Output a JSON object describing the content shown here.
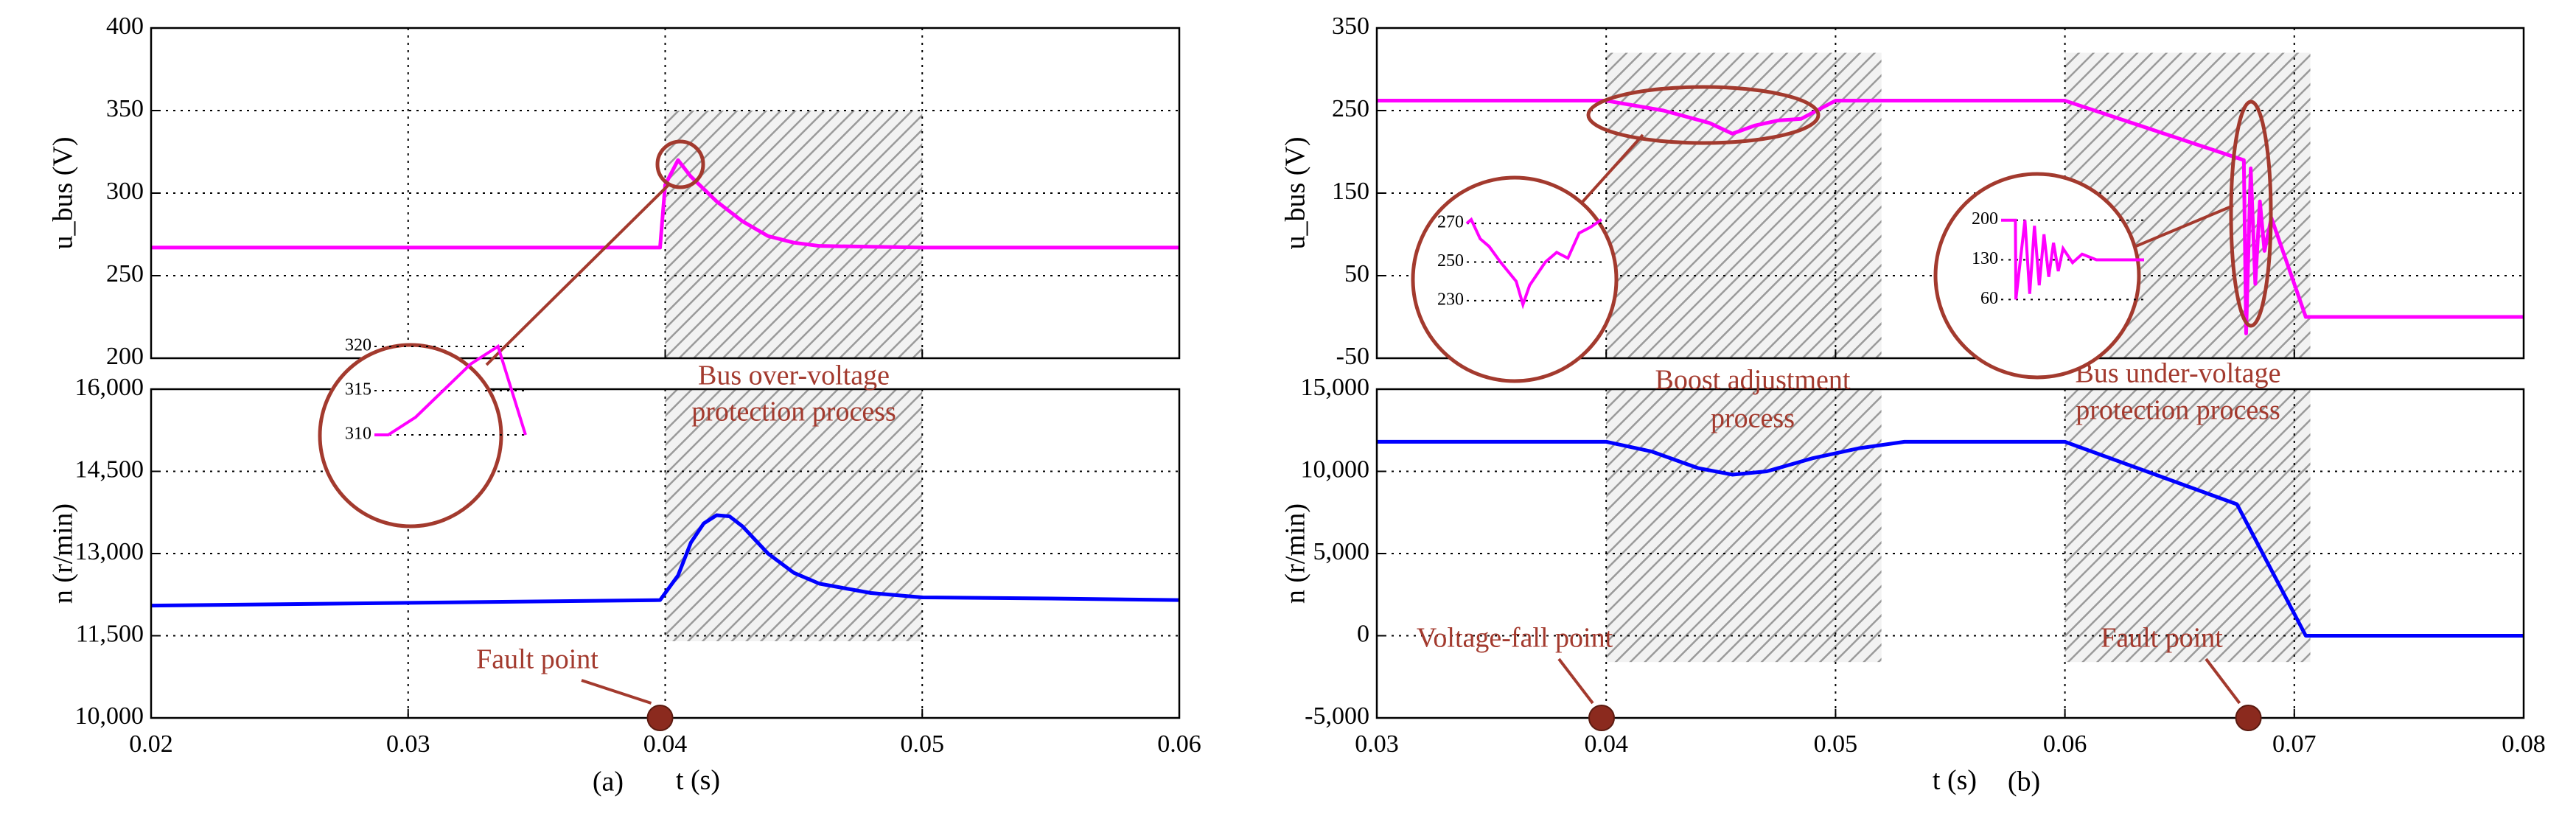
{
  "chart_data": [
    {
      "type": "line",
      "ylabel": "u_bus (V)",
      "xlim": [
        0.02,
        0.06
      ],
      "ylim": [
        200,
        400
      ],
      "yticks": [
        200,
        250,
        300,
        350,
        400
      ],
      "grid": true,
      "series": [
        {
          "color": "#ff00ff",
          "x": [
            0.02,
            0.0398,
            0.04,
            0.0405,
            0.041,
            0.042,
            0.043,
            0.044,
            0.045,
            0.046,
            0.05,
            0.06
          ],
          "values": [
            267,
            267,
            305,
            320,
            310,
            295,
            283,
            274,
            270,
            268,
            267,
            267
          ]
        }
      ],
      "shade": {
        "x": [
          0.04,
          0.05
        ],
        "y": [
          200,
          350
        ]
      },
      "inset": {
        "xlim": [
          0.0386,
          0.0408
        ],
        "ylim": [
          309,
          321
        ],
        "yticks": [
          310,
          315,
          320
        ],
        "x": [
          0.0386,
          0.0388,
          0.0392,
          0.0396,
          0.04,
          0.0404,
          0.0406,
          0.0408
        ],
        "values": [
          310,
          310,
          312,
          315,
          318,
          320,
          315,
          310
        ]
      }
    },
    {
      "type": "line",
      "ylabel": "n (r/min)",
      "xlabel": "t (s)",
      "caption": "(a)",
      "xlim": [
        0.02,
        0.06
      ],
      "xticks": [
        0.02,
        0.03,
        0.04,
        0.05,
        0.06
      ],
      "ylim": [
        10000,
        16000
      ],
      "yticks": [
        {
          "value": 10000,
          "label": "10,000"
        },
        {
          "value": 11500,
          "label": "11,500"
        },
        {
          "value": 13000,
          "label": "13,000"
        },
        {
          "value": 14500,
          "label": "14,500"
        },
        {
          "value": 16000,
          "label": "16,000"
        }
      ],
      "grid": true,
      "series": [
        {
          "color": "#0000ff",
          "x": [
            0.02,
            0.03,
            0.0398,
            0.0405,
            0.041,
            0.0415,
            0.042,
            0.0425,
            0.043,
            0.044,
            0.045,
            0.046,
            0.048,
            0.05,
            0.055,
            0.06
          ],
          "values": [
            12050,
            12100,
            12150,
            12600,
            13200,
            13550,
            13700,
            13680,
            13500,
            13000,
            12650,
            12450,
            12280,
            12200,
            12180,
            12150
          ]
        }
      ],
      "shade": {
        "x": [
          0.04,
          0.05
        ],
        "y": [
          11400,
          16000
        ]
      },
      "annotations": [
        "Bus over-voltage",
        "protection process"
      ],
      "markers": [
        {
          "label": "Fault point",
          "x": 0.0398
        }
      ]
    },
    {
      "type": "line",
      "ylabel": "u_bus (V)",
      "xlim": [
        0.03,
        0.08
      ],
      "ylim": [
        -50,
        350
      ],
      "yticks": [
        -50,
        50,
        150,
        250,
        350
      ],
      "grid": true,
      "series": [
        {
          "color": "#ff00ff",
          "x": [
            0.03,
            0.04,
            0.0425,
            0.0445,
            0.0455,
            0.0465,
            0.0475,
            0.0485,
            0.05,
            0.06,
            0.0678,
            0.0679,
            0.0681,
            0.0683,
            0.0685,
            0.0687,
            0.069,
            0.0695,
            0.0705,
            0.08
          ],
          "values": [
            262,
            262,
            250,
            235,
            222,
            232,
            238,
            240,
            262,
            262,
            190,
            -20,
            180,
            40,
            140,
            80,
            120,
            80,
            0,
            0
          ]
        }
      ],
      "shade": {
        "x": [
          0.04,
          0.052
        ],
        "y": [
          -50,
          320
        ]
      },
      "shade2": {
        "x": [
          0.06,
          0.0707
        ],
        "y": [
          -50,
          320
        ]
      },
      "insets": [
        {
          "xlim": [
            0.043,
            0.049
          ],
          "ylim": [
            225,
            275
          ],
          "yticks": [
            230,
            250,
            270
          ],
          "x": [
            0.043,
            0.0432,
            0.0436,
            0.044,
            0.0445,
            0.0452,
            0.0455,
            0.0458,
            0.0465,
            0.047,
            0.0475,
            0.048,
            0.0485,
            0.049
          ],
          "values": [
            270,
            272,
            262,
            258,
            250,
            240,
            228,
            238,
            250,
            255,
            252,
            265,
            268,
            272
          ]
        },
        {
          "xlim": [
            0.0675,
            0.0705
          ],
          "ylim": [
            50,
            210
          ],
          "yticks": [
            60,
            130,
            200
          ],
          "x": [
            0.0675,
            0.0678,
            0.06781,
            0.068,
            0.0681,
            0.0682,
            0.0683,
            0.0684,
            0.0685,
            0.0686,
            0.0687,
            0.0688,
            0.069,
            0.0692,
            0.0695,
            0.0705
          ],
          "values": [
            200,
            200,
            60,
            200,
            70,
            190,
            85,
            175,
            100,
            160,
            110,
            150,
            125,
            140,
            130,
            130
          ]
        }
      ]
    },
    {
      "type": "line",
      "ylabel": "n (r/min)",
      "xlabel": "t (s)",
      "caption": "(b)",
      "xlim": [
        0.03,
        0.08
      ],
      "xticks": [
        0.03,
        0.04,
        0.05,
        0.06,
        0.07,
        0.08
      ],
      "ylim": [
        -5000,
        15000
      ],
      "yticks": [
        {
          "value": -5000,
          "label": "-5,000"
        },
        0,
        {
          "value": 5000,
          "label": "5,000"
        },
        {
          "value": 10000,
          "label": "10,000"
        },
        {
          "value": 15000,
          "label": "15,000"
        }
      ],
      "grid": true,
      "series": [
        {
          "color": "#0000ff",
          "x": [
            0.03,
            0.04,
            0.042,
            0.044,
            0.0455,
            0.047,
            0.049,
            0.051,
            0.053,
            0.06,
            0.0675,
            0.0705,
            0.08
          ],
          "values": [
            11800,
            11800,
            11200,
            10200,
            9800,
            10000,
            10800,
            11400,
            11800,
            11800,
            8000,
            0,
            0
          ]
        }
      ],
      "shade": {
        "x": [
          0.04,
          0.052
        ],
        "y": [
          -1600,
          15000
        ]
      },
      "shade2": {
        "x": [
          0.06,
          0.0707
        ],
        "y": [
          -1600,
          15000
        ]
      },
      "annotations": [
        "Boost adjustment",
        "process",
        "Bus under-voltage",
        "protection process"
      ],
      "markers": [
        {
          "label": "Voltage-fall point",
          "x": 0.0398
        },
        {
          "label": "Fault point",
          "x": 0.068
        }
      ]
    }
  ]
}
